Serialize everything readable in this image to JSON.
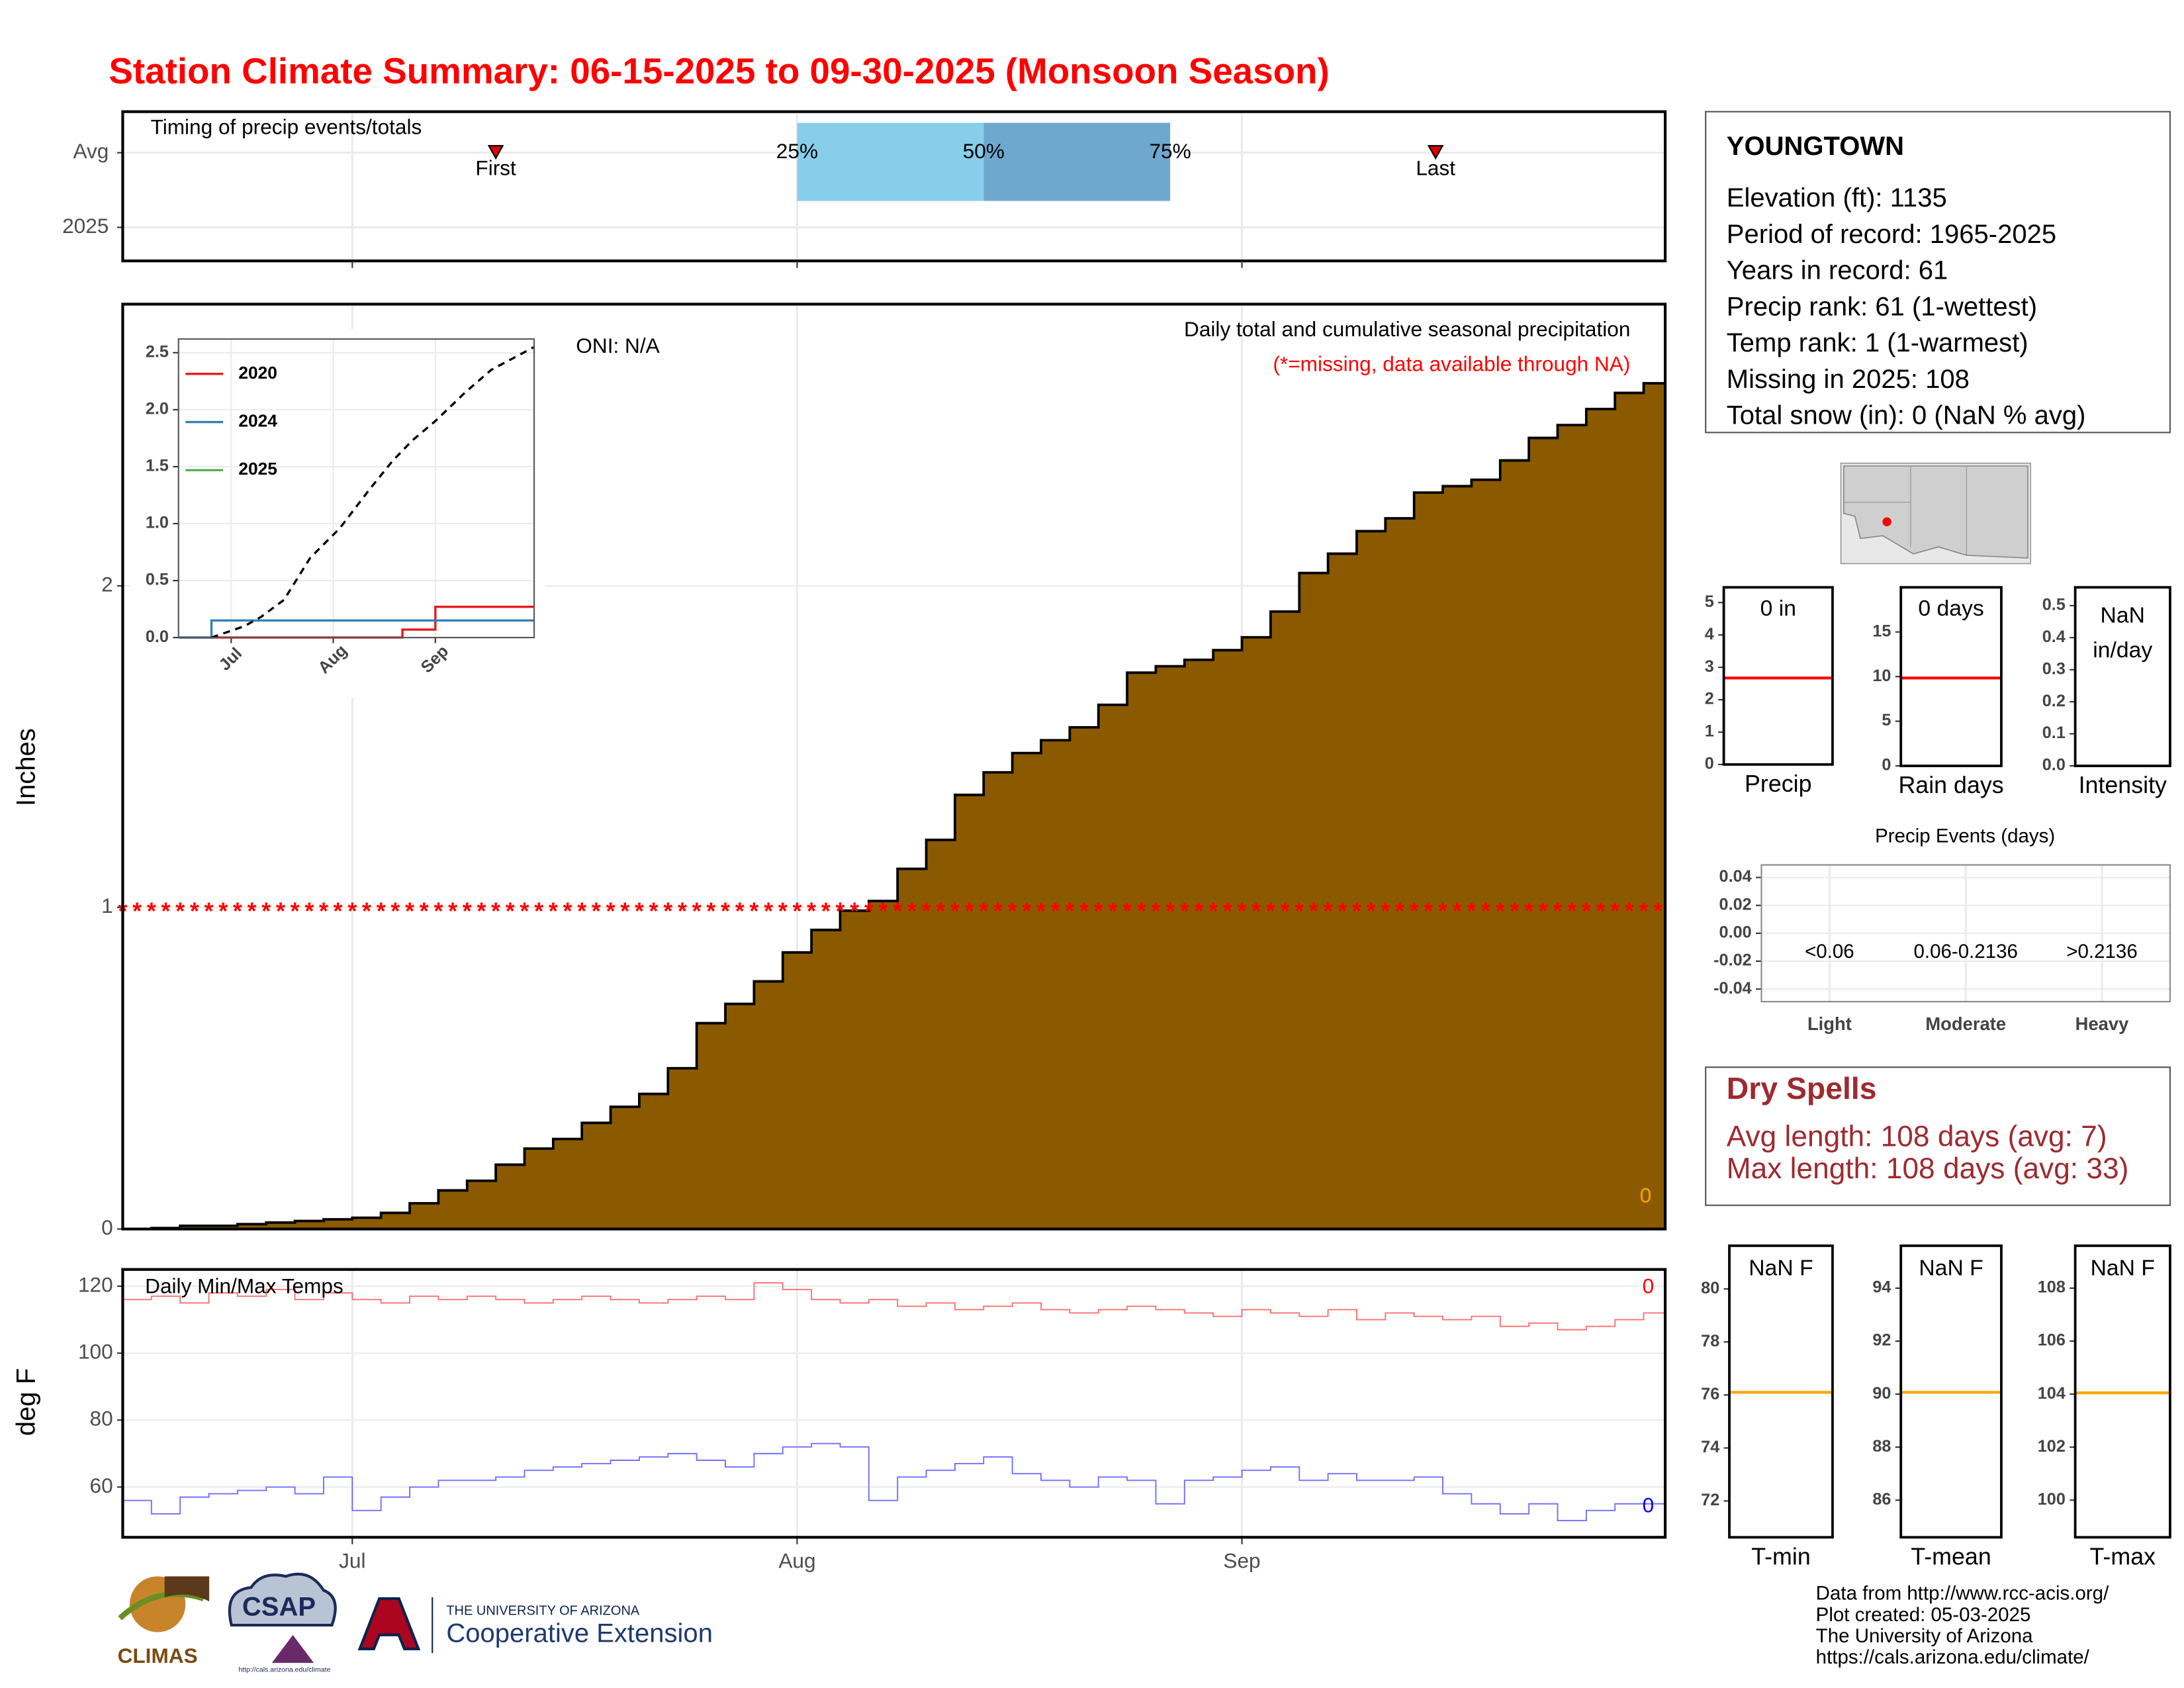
{
  "title": "Station Climate Summary: 06-15-2025 to 09-30-2025 (Monsoon Season)",
  "chart_data": [
    {
      "type": "timing",
      "title": "Timing of precip events/totals",
      "categories": [
        "Avg",
        "2025"
      ],
      "xlim": [
        0,
        107.5
      ],
      "xticks": [
        16,
        47,
        78
      ],
      "grid": true,
      "quartiles": {
        "labels": [
          "25%",
          "50%",
          "75%"
        ],
        "x": [
          47,
          60,
          73
        ],
        "colors": [
          "#87ceeb",
          "#6fa8cf"
        ]
      },
      "events": {
        "labels": [
          "First",
          "Last"
        ],
        "x": [
          26,
          91.5
        ],
        "color": "#e00000"
      }
    },
    {
      "type": "step_area",
      "ylabel": "Inches",
      "x": [
        0,
        2,
        4,
        6,
        8,
        10,
        12,
        14,
        16,
        18,
        20,
        22,
        24,
        26,
        28,
        30,
        32,
        34,
        36,
        38,
        40,
        42,
        44,
        46,
        48,
        50,
        52,
        54,
        56,
        58,
        60,
        62,
        64,
        66,
        68,
        70,
        72,
        74,
        76,
        78,
        80,
        82,
        84,
        86,
        88,
        90,
        92,
        94,
        96,
        98,
        100,
        102,
        104,
        106
      ],
      "values": [
        0,
        0.003,
        0.01,
        0.01,
        0.015,
        0.02,
        0.025,
        0.03,
        0.035,
        0.05,
        0.08,
        0.12,
        0.15,
        0.2,
        0.25,
        0.28,
        0.33,
        0.38,
        0.42,
        0.5,
        0.64,
        0.7,
        0.77,
        0.86,
        0.93,
        0.99,
        1.02,
        1.12,
        1.21,
        1.35,
        1.42,
        1.48,
        1.52,
        1.56,
        1.63,
        1.73,
        1.75,
        1.77,
        1.8,
        1.84,
        1.92,
        2.04,
        2.1,
        2.17,
        2.21,
        2.29,
        2.31,
        2.33,
        2.39,
        2.46,
        2.5,
        2.55,
        2.6,
        2.63
      ],
      "color": "#8b5a00",
      "xlim": [
        0,
        107.5
      ],
      "xticks": [
        16,
        47,
        78
      ],
      "ylim": [
        0,
        2.876
      ],
      "yticks": [
        0,
        1,
        2
      ],
      "grid": true,
      "missing": {
        "y": 1,
        "symbol": "*",
        "color": "#ff0000"
      },
      "annotations": [
        {
          "text": "ONI: N/A",
          "color": "#000000"
        },
        {
          "text": "Daily total and cumulative seasonal precipitation",
          "color": "#000000"
        },
        {
          "text": "(*=missing, data available through NA)",
          "color": "#ff0000"
        },
        {
          "text": "0",
          "color": "#ffa500"
        }
      ]
    },
    {
      "type": "line",
      "inset": true,
      "xlim": [
        0,
        108
      ],
      "xticks": [
        {
          "value": 16,
          "label": "Jul"
        },
        {
          "value": 47,
          "label": "Aug"
        },
        {
          "value": 78,
          "label": "Sep"
        }
      ],
      "ylim": [
        0,
        2.62
      ],
      "yticks": [
        {
          "value": 0,
          "label": "0.0"
        },
        0.5,
        {
          "value": 1,
          "label": "1.0"
        },
        1.5,
        {
          "value": 2,
          "label": "2.0"
        },
        2.5
      ],
      "grid": true,
      "legend": "top-left",
      "series": [
        {
          "name": "2020",
          "color": "#e41a1c",
          "x": [
            0,
            68,
            78
          ],
          "values": [
            0,
            0.07,
            0.27
          ]
        },
        {
          "name": "2024",
          "color": "#377eb8",
          "x": [
            0,
            10
          ],
          "values": [
            0,
            0.15
          ]
        },
        {
          "name": "2025",
          "color": "#4daf4a",
          "x": [],
          "values": []
        }
      ],
      "average": {
        "color": "#000000",
        "x": [
          10,
          20,
          25,
          32,
          40,
          49,
          58,
          65,
          71,
          78,
          87,
          95,
          108
        ],
        "values": [
          0,
          0.1,
          0.18,
          0.33,
          0.7,
          0.96,
          1.3,
          1.55,
          1.73,
          1.9,
          2.15,
          2.35,
          2.55
        ]
      }
    },
    {
      "type": "temps",
      "title": "Daily Min/Max Temps",
      "ylabel": "deg F",
      "xlim": [
        0,
        107.5
      ],
      "xticks": [
        {
          "value": 16,
          "label": "Jul"
        },
        {
          "value": 47,
          "label": "Aug"
        },
        {
          "value": 78,
          "label": "Sep"
        }
      ],
      "ylim": [
        45,
        125
      ],
      "yticks": [
        60,
        80,
        100,
        120
      ],
      "grid": true,
      "x": [
        0,
        2,
        4,
        6,
        8,
        10,
        12,
        14,
        16,
        18,
        20,
        22,
        24,
        26,
        28,
        30,
        32,
        34,
        36,
        38,
        40,
        42,
        44,
        46,
        48,
        50,
        52,
        54,
        56,
        58,
        60,
        62,
        64,
        66,
        68,
        70,
        72,
        74,
        76,
        78,
        80,
        82,
        84,
        86,
        88,
        90,
        92,
        94,
        96,
        98,
        100,
        102,
        104,
        106
      ],
      "series": [
        {
          "name": "Tmax",
          "color": "#ff7070",
          "values": [
            116,
            117,
            115,
            118,
            117,
            119,
            116,
            118,
            116,
            115,
            117,
            116,
            117,
            116,
            115,
            116,
            117,
            116,
            115,
            116,
            117,
            116,
            121,
            119,
            116,
            115,
            116,
            114,
            115,
            113,
            114,
            115,
            113,
            112,
            113,
            114,
            113,
            112,
            111,
            113,
            112,
            111,
            113,
            110,
            112,
            111,
            110,
            111,
            108,
            109,
            107,
            108,
            110,
            112
          ],
          "end_label": "0",
          "end_color": "#ff0000"
        },
        {
          "name": "Tmin",
          "color": "#7070ff",
          "values": [
            56,
            52,
            57,
            58,
            59,
            60,
            58,
            63,
            53,
            57,
            60,
            62,
            62,
            63,
            65,
            66,
            67,
            68,
            69,
            70,
            68,
            66,
            70,
            72,
            73,
            72,
            56,
            63,
            65,
            67,
            69,
            64,
            62,
            60,
            63,
            62,
            55,
            62,
            63,
            65,
            66,
            62,
            64,
            62,
            62,
            63,
            58,
            55,
            52,
            55,
            50,
            53,
            55,
            55
          ],
          "end_label": "0",
          "end_color": "#0000ff"
        }
      ]
    },
    {
      "type": "gauge",
      "label": [
        "0 in"
      ],
      "xlabel": "Precip",
      "ylim": [
        0,
        5.47
      ],
      "yticks": [
        0,
        1,
        2,
        3,
        4,
        5
      ],
      "value": 2.67,
      "color": "#ff0000"
    },
    {
      "type": "gauge",
      "label": [
        "0 days"
      ],
      "xlabel": "Rain days",
      "ylim": [
        0,
        20
      ],
      "yticks": [
        0,
        5,
        10,
        15
      ],
      "value": 9.84,
      "color": "#ff0000"
    },
    {
      "type": "gauge",
      "label": [
        "NaN",
        "in/day"
      ],
      "xlabel": "Intensity",
      "ylim": [
        0,
        0.557
      ],
      "yticks": [
        {
          "value": 0,
          "label": "0.0"
        },
        0.1,
        0.2,
        0.3,
        0.4,
        0.5
      ],
      "value": null,
      "color": "#ff0000"
    },
    {
      "type": "bar",
      "title": "Precip Events (days)",
      "categories": [
        "Light",
        "Moderate",
        "Heavy"
      ],
      "values": [
        0,
        0,
        0
      ],
      "bin_labels": [
        "<0.06",
        "0.06-0.2136",
        ">0.2136"
      ],
      "color": "#000000",
      "ylim": [
        -0.049,
        0.049
      ],
      "yticks": [
        -0.04,
        -0.02,
        {
          "value": 0,
          "label": "0.00"
        },
        0.02,
        0.04
      ],
      "grid": true
    },
    {
      "type": "gauge",
      "label": [
        "NaN F"
      ],
      "xlabel": "T-min",
      "ylim": [
        70.63,
        81.63
      ],
      "yticks": [
        72,
        74,
        76,
        78,
        80
      ],
      "value": 76.1,
      "color": "#ffa500"
    },
    {
      "type": "gauge",
      "label": [
        "NaN F"
      ],
      "xlabel": "T-mean",
      "ylim": [
        84.6,
        95.6
      ],
      "yticks": [
        86,
        88,
        90,
        92,
        94
      ],
      "value": 90.07,
      "color": "#ffa500"
    },
    {
      "type": "gauge",
      "label": [
        "NaN F"
      ],
      "xlabel": "T-max",
      "ylim": [
        98.6,
        109.6
      ],
      "yticks": [
        100,
        102,
        104,
        106,
        108
      ],
      "value": 104.05,
      "color": "#ffa500"
    }
  ],
  "station": {
    "name": "YOUNGTOWN",
    "lines": [
      "Elevation (ft): 1135",
      "Period of record: 1965-2025",
      "Years in record: 61",
      "Precip rank: 61 (1-wettest)",
      "Temp rank: 1 (1-warmest)",
      "Missing in 2025: 108",
      "Total snow (in): 0 (NaN % avg)"
    ]
  },
  "dry_spells": {
    "title": "Dry Spells",
    "lines": [
      "Avg length: 108 days (avg: 7)",
      "Max length: 108 days (avg: 33)"
    ]
  },
  "footer": [
    "Data from http://www.rcc-acis.org/",
    "Plot created: 05-03-2025",
    "The University of Arizona",
    "https://cals.arizona.edu/climate/"
  ],
  "logos": {
    "climas": "CLIMAS",
    "csap": "CSAP",
    "csap_url": "http://cals.arizona.edu/climate",
    "ua_top": "THE UNIVERSITY OF ARIZONA",
    "ua_name": "Cooperative Extension"
  }
}
